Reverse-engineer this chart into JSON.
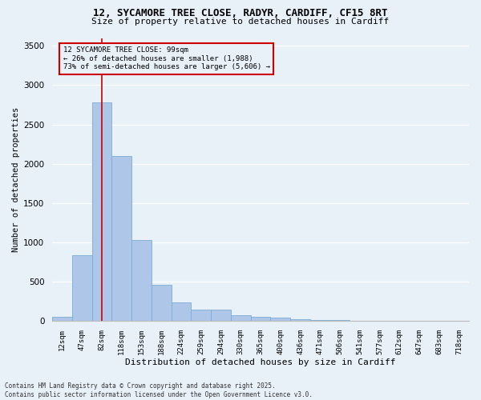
{
  "title_line1": "12, SYCAMORE TREE CLOSE, RADYR, CARDIFF, CF15 8RT",
  "title_line2": "Size of property relative to detached houses in Cardiff",
  "xlabel": "Distribution of detached houses by size in Cardiff",
  "ylabel": "Number of detached properties",
  "categories": [
    "12sqm",
    "47sqm",
    "82sqm",
    "118sqm",
    "153sqm",
    "188sqm",
    "224sqm",
    "259sqm",
    "294sqm",
    "330sqm",
    "365sqm",
    "400sqm",
    "436sqm",
    "471sqm",
    "506sqm",
    "541sqm",
    "577sqm",
    "612sqm",
    "647sqm",
    "683sqm",
    "718sqm"
  ],
  "values": [
    55,
    840,
    2780,
    2100,
    1030,
    460,
    240,
    150,
    150,
    70,
    55,
    45,
    20,
    15,
    10,
    5,
    3,
    2,
    1,
    1,
    0
  ],
  "bar_color": "#aec6e8",
  "bar_edge_color": "#7aadd4",
  "vline_x": 2,
  "vline_color": "#cc0000",
  "annotation_text": "12 SYCAMORE TREE CLOSE: 99sqm\n← 26% of detached houses are smaller (1,988)\n73% of semi-detached houses are larger (5,606) →",
  "annotation_box_color": "#cc0000",
  "ylim": [
    0,
    3600
  ],
  "yticks": [
    0,
    500,
    1000,
    1500,
    2000,
    2500,
    3000,
    3500
  ],
  "background_color": "#e8f0f8",
  "grid_color": "#ffffff",
  "footer_line1": "Contains HM Land Registry data © Crown copyright and database right 2025.",
  "footer_line2": "Contains public sector information licensed under the Open Government Licence v3.0."
}
